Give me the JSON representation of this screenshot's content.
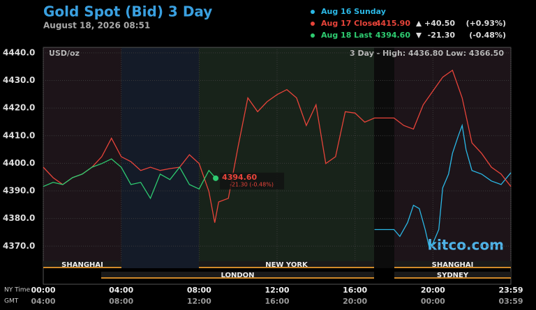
{
  "chart_data": {
    "type": "line",
    "title": "Gold Spot (Bid) 3 Day",
    "subtitle": "August 18, 2026 08:51",
    "unit_label": "USD/oz",
    "range_note": "3 Day - High: 4436.80  Low: 4366.50",
    "brand": "kitco.com",
    "series": [
      {
        "name": "Aug 16 Sunday",
        "color": "#2bb8e6",
        "x": [
          17,
          18,
          18.3,
          18.7,
          19,
          19.3,
          19.6,
          19.8,
          20,
          20.3,
          20.5,
          20.8,
          21,
          21.3,
          21.5,
          21.7,
          22,
          22.5,
          23,
          23.5,
          24
        ],
        "values": [
          4376.0,
          4376.0,
          4373.5,
          4378.5,
          4384.8,
          4383.6,
          4376.0,
          4369.8,
          4371.0,
          4376.0,
          4391.1,
          4396.1,
          4403.6,
          4409.9,
          4413.7,
          4404.9,
          4397.4,
          4396.1,
          4393.6,
          4392.3,
          4396.6
        ]
      },
      {
        "name": "Aug 17 Close",
        "color": "#e8443a",
        "last": "4415.90",
        "change": "+40.50",
        "change_pct": "(+0.93%)",
        "x": [
          0,
          0.5,
          1,
          1.5,
          2,
          2.5,
          3,
          3.5,
          4,
          4.5,
          5,
          5.5,
          6,
          6.5,
          7,
          7.5,
          8,
          8.5,
          8.8,
          9,
          9.5,
          10,
          10.5,
          11,
          11.5,
          12,
          12.5,
          13,
          13.5,
          14,
          14.5,
          15,
          15.5,
          16,
          16.5,
          17,
          18,
          18.5,
          19,
          19.5,
          20,
          20.5,
          21,
          21.5,
          22,
          22.5,
          23,
          23.5,
          24
        ],
        "values": [
          4398.6,
          4394.8,
          4392.3,
          4394.8,
          4396.1,
          4398.6,
          4402.4,
          4409.1,
          4402.4,
          4400.6,
          4397.4,
          4398.6,
          4397.4,
          4398.1,
          4398.6,
          4403.1,
          4399.9,
          4389.8,
          4378.5,
          4386.0,
          4387.3,
          4406.1,
          4423.7,
          4418.7,
          4422.4,
          4424.9,
          4426.7,
          4423.7,
          4413.7,
          4421.2,
          4399.9,
          4402.4,
          4418.7,
          4418.2,
          4414.9,
          4416.4,
          4416.4,
          4413.7,
          4412.4,
          4421.2,
          4426.2,
          4431.2,
          4433.7,
          4423.7,
          4407.4,
          4403.6,
          4398.6,
          4396.1,
          4391.6
        ]
      },
      {
        "name": "Aug 18 Last",
        "color": "#2ecc71",
        "last": "4394.60",
        "change": "-21.30",
        "change_pct": "(-0.48%)",
        "x": [
          0,
          0.5,
          1,
          1.5,
          2,
          2.5,
          3,
          3.5,
          4,
          4.5,
          5,
          5.5,
          6,
          6.5,
          7,
          7.5,
          8,
          8.5,
          8.85
        ],
        "values": [
          4391.6,
          4393.1,
          4392.3,
          4394.8,
          4396.1,
          4398.6,
          4399.9,
          4401.6,
          4398.6,
          4392.3,
          4393.1,
          4387.3,
          4396.1,
          4394.1,
          4398.6,
          4392.3,
          4390.7,
          4397.4,
          4394.6
        ]
      }
    ],
    "last_label": "4394.60",
    "last_change_label": "-21.30 (-0.48%)",
    "xlim": [
      0,
      24
    ],
    "xticks": [
      {
        "value": 0,
        "label": "00:00"
      },
      {
        "value": 4,
        "label": "04:00"
      },
      {
        "value": 8,
        "label": "08:00"
      },
      {
        "value": 12,
        "label": "12:00"
      },
      {
        "value": 16,
        "label": "16:00"
      },
      {
        "value": 20,
        "label": "20:00"
      },
      {
        "value": 24,
        "label": "23:59"
      }
    ],
    "x2_labels": [
      "04:00",
      "08:00",
      "12:00",
      "16:00",
      "20:00",
      "00:00",
      "03:59"
    ],
    "x_axis_label": "NY Time",
    "x2_axis_label": "GMT",
    "ylim": [
      4362,
      4442
    ],
    "yticks": [
      {
        "value": 4370,
        "label": "4370.0"
      },
      {
        "value": 4380,
        "label": "4380.0"
      },
      {
        "value": 4390,
        "label": "4390.0"
      },
      {
        "value": 4400,
        "label": "4400.0"
      },
      {
        "value": 4410,
        "label": "4410.0"
      },
      {
        "value": 4420,
        "label": "4420.0"
      },
      {
        "value": 4430,
        "label": "4430.0"
      },
      {
        "value": 4440,
        "label": "4440.0"
      }
    ],
    "grid": true,
    "sessions": [
      "SHANGHAI",
      "LONDON",
      "NEW YORK",
      "SHANGHAI",
      "SYDNEY"
    ]
  }
}
